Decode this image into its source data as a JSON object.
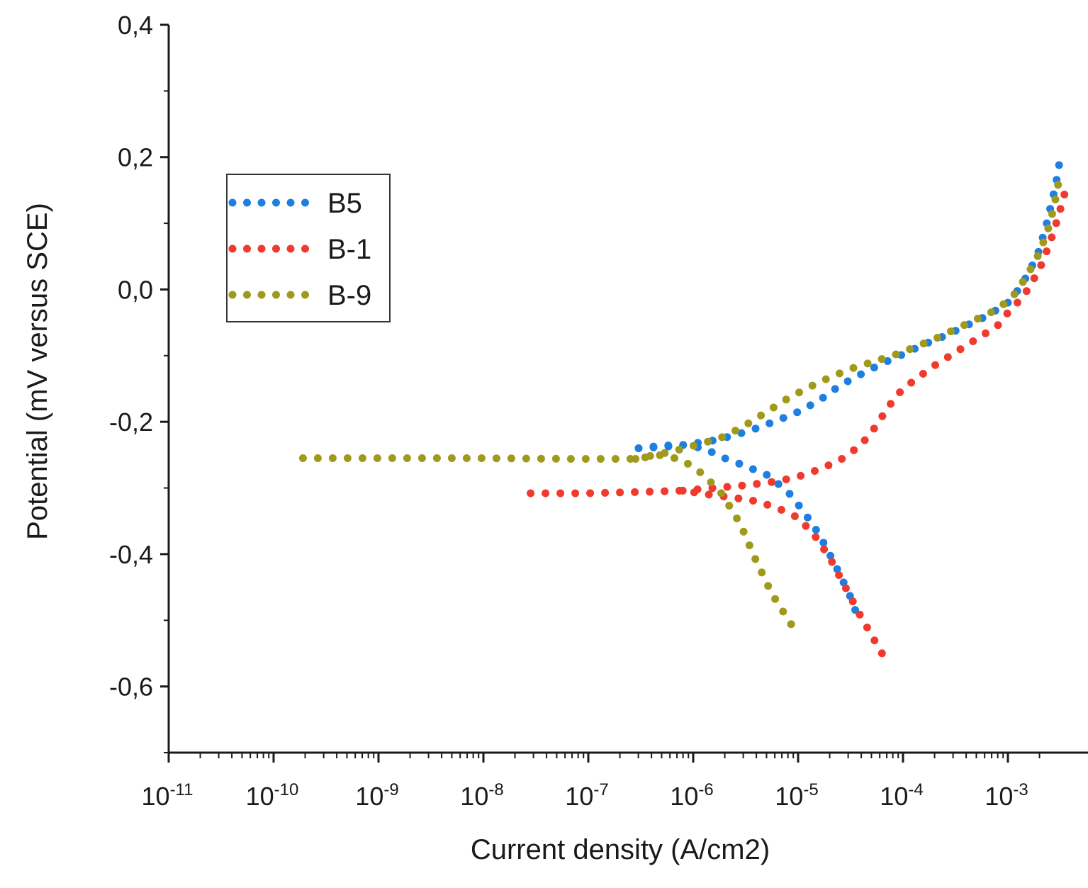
{
  "chart_data": {
    "type": "scatter",
    "title": "",
    "xlabel": "Current density (A/cm2)",
    "ylabel": "Potential  (mV versus SCE)",
    "xscale": "log",
    "xlim_exponent": [
      -11,
      -2.6
    ],
    "ylim": [
      -0.7,
      0.4
    ],
    "x_ticks": [
      {
        "base": "10",
        "exp": "-11",
        "value": -11
      },
      {
        "base": "10",
        "exp": "-10",
        "value": -10
      },
      {
        "base": "10",
        "exp": "-9",
        "value": -9
      },
      {
        "base": "10",
        "exp": "-8",
        "value": -8
      },
      {
        "base": "10",
        "exp": "-7",
        "value": -7
      },
      {
        "base": "10",
        "exp": "-6",
        "value": -6
      },
      {
        "base": "10",
        "exp": "-5",
        "value": -5
      },
      {
        "base": "10",
        "exp": "-4",
        "value": -4
      },
      {
        "base": "10",
        "exp": "-3",
        "value": -3
      }
    ],
    "y_ticks": [
      {
        "label": "0,4",
        "value": 0.4
      },
      {
        "label": "0,2",
        "value": 0.2
      },
      {
        "label": "0,0",
        "value": 0.0
      },
      {
        "label": "-0,2",
        "value": -0.2
      },
      {
        "label": "-0,4",
        "value": -0.4
      },
      {
        "label": "-0,6",
        "value": -0.6
      }
    ],
    "legend_position": "upper-left",
    "series": [
      {
        "name": "B5",
        "color": "#1f7fe0",
        "anchors": [
          [
            -6.52,
            -0.24
          ],
          [
            -6.3,
            -0.236
          ],
          [
            -6.1,
            -0.235
          ],
          [
            -5.9,
            -0.24
          ],
          [
            -5.7,
            -0.255
          ],
          [
            -5.5,
            -0.267
          ],
          [
            -5.3,
            -0.28
          ],
          [
            -5.1,
            -0.305
          ],
          [
            -4.95,
            -0.335
          ],
          [
            -4.8,
            -0.37
          ],
          [
            -4.65,
            -0.415
          ],
          [
            -4.5,
            -0.465
          ],
          [
            -4.42,
            -0.5
          ]
        ],
        "anodic": [
          [
            -6.52,
            -0.24
          ],
          [
            -6.2,
            -0.237
          ],
          [
            -6.0,
            -0.233
          ],
          [
            -5.8,
            -0.228
          ],
          [
            -5.6,
            -0.22
          ],
          [
            -5.4,
            -0.21
          ],
          [
            -5.2,
            -0.198
          ],
          [
            -5.0,
            -0.185
          ],
          [
            -4.8,
            -0.168
          ],
          [
            -4.6,
            -0.145
          ],
          [
            -4.4,
            -0.128
          ],
          [
            -4.2,
            -0.112
          ],
          [
            -4.0,
            -0.098
          ],
          [
            -3.8,
            -0.083
          ],
          [
            -3.6,
            -0.07
          ],
          [
            -3.4,
            -0.055
          ],
          [
            -3.2,
            -0.04
          ],
          [
            -3.0,
            -0.02
          ],
          [
            -2.9,
            0.0
          ],
          [
            -2.8,
            0.025
          ],
          [
            -2.7,
            0.06
          ],
          [
            -2.63,
            0.1
          ],
          [
            -2.57,
            0.14
          ],
          [
            -2.53,
            0.17
          ],
          [
            -2.5,
            0.2
          ]
        ]
      },
      {
        "name": "B-1",
        "color": "#f03a2e",
        "anchors": [
          [
            -7.55,
            -0.308
          ],
          [
            -7.0,
            -0.308
          ],
          [
            -6.5,
            -0.306
          ],
          [
            -6.1,
            -0.304
          ],
          [
            -5.85,
            -0.31
          ],
          [
            -5.6,
            -0.315
          ],
          [
            -5.4,
            -0.32
          ],
          [
            -5.2,
            -0.33
          ],
          [
            -5.0,
            -0.345
          ],
          [
            -4.85,
            -0.37
          ],
          [
            -4.7,
            -0.405
          ],
          [
            -4.55,
            -0.45
          ],
          [
            -4.4,
            -0.495
          ],
          [
            -4.2,
            -0.55
          ]
        ],
        "anodic": [
          [
            -6.1,
            -0.304
          ],
          [
            -5.8,
            -0.3
          ],
          [
            -5.5,
            -0.296
          ],
          [
            -5.2,
            -0.29
          ],
          [
            -5.0,
            -0.283
          ],
          [
            -4.8,
            -0.272
          ],
          [
            -4.6,
            -0.258
          ],
          [
            -4.4,
            -0.235
          ],
          [
            -4.25,
            -0.205
          ],
          [
            -4.15,
            -0.18
          ],
          [
            -4.05,
            -0.158
          ],
          [
            -3.9,
            -0.138
          ],
          [
            -3.7,
            -0.115
          ],
          [
            -3.5,
            -0.095
          ],
          [
            -3.3,
            -0.075
          ],
          [
            -3.1,
            -0.055
          ],
          [
            -3.0,
            -0.035
          ],
          [
            -2.85,
            -0.01
          ],
          [
            -2.7,
            0.03
          ],
          [
            -2.6,
            0.07
          ],
          [
            -2.52,
            0.11
          ],
          [
            -2.45,
            0.15
          ]
        ]
      },
      {
        "name": "B-9",
        "color": "#a09a1c",
        "anchors": [
          [
            -9.72,
            -0.255
          ],
          [
            -9.0,
            -0.255
          ],
          [
            -8.0,
            -0.255
          ],
          [
            -7.2,
            -0.256
          ],
          [
            -6.8,
            -0.256
          ],
          [
            -6.55,
            -0.256
          ],
          [
            -6.3,
            -0.25
          ],
          [
            -6.1,
            -0.258
          ],
          [
            -5.9,
            -0.28
          ],
          [
            -5.72,
            -0.31
          ],
          [
            -5.55,
            -0.355
          ],
          [
            -5.4,
            -0.41
          ],
          [
            -5.25,
            -0.46
          ],
          [
            -5.05,
            -0.51
          ]
        ],
        "anodic": [
          [
            -6.55,
            -0.256
          ],
          [
            -6.2,
            -0.245
          ],
          [
            -5.9,
            -0.232
          ],
          [
            -5.7,
            -0.222
          ],
          [
            -5.5,
            -0.205
          ],
          [
            -5.3,
            -0.185
          ],
          [
            -5.1,
            -0.165
          ],
          [
            -4.9,
            -0.148
          ],
          [
            -4.7,
            -0.133
          ],
          [
            -4.5,
            -0.12
          ],
          [
            -4.3,
            -0.11
          ],
          [
            -4.1,
            -0.1
          ],
          [
            -3.9,
            -0.088
          ],
          [
            -3.7,
            -0.075
          ],
          [
            -3.5,
            -0.06
          ],
          [
            -3.3,
            -0.045
          ],
          [
            -3.1,
            -0.03
          ],
          [
            -2.95,
            -0.01
          ],
          [
            -2.82,
            0.02
          ],
          [
            -2.7,
            0.055
          ],
          [
            -2.62,
            0.09
          ],
          [
            -2.56,
            0.125
          ],
          [
            -2.52,
            0.16
          ]
        ]
      }
    ]
  }
}
